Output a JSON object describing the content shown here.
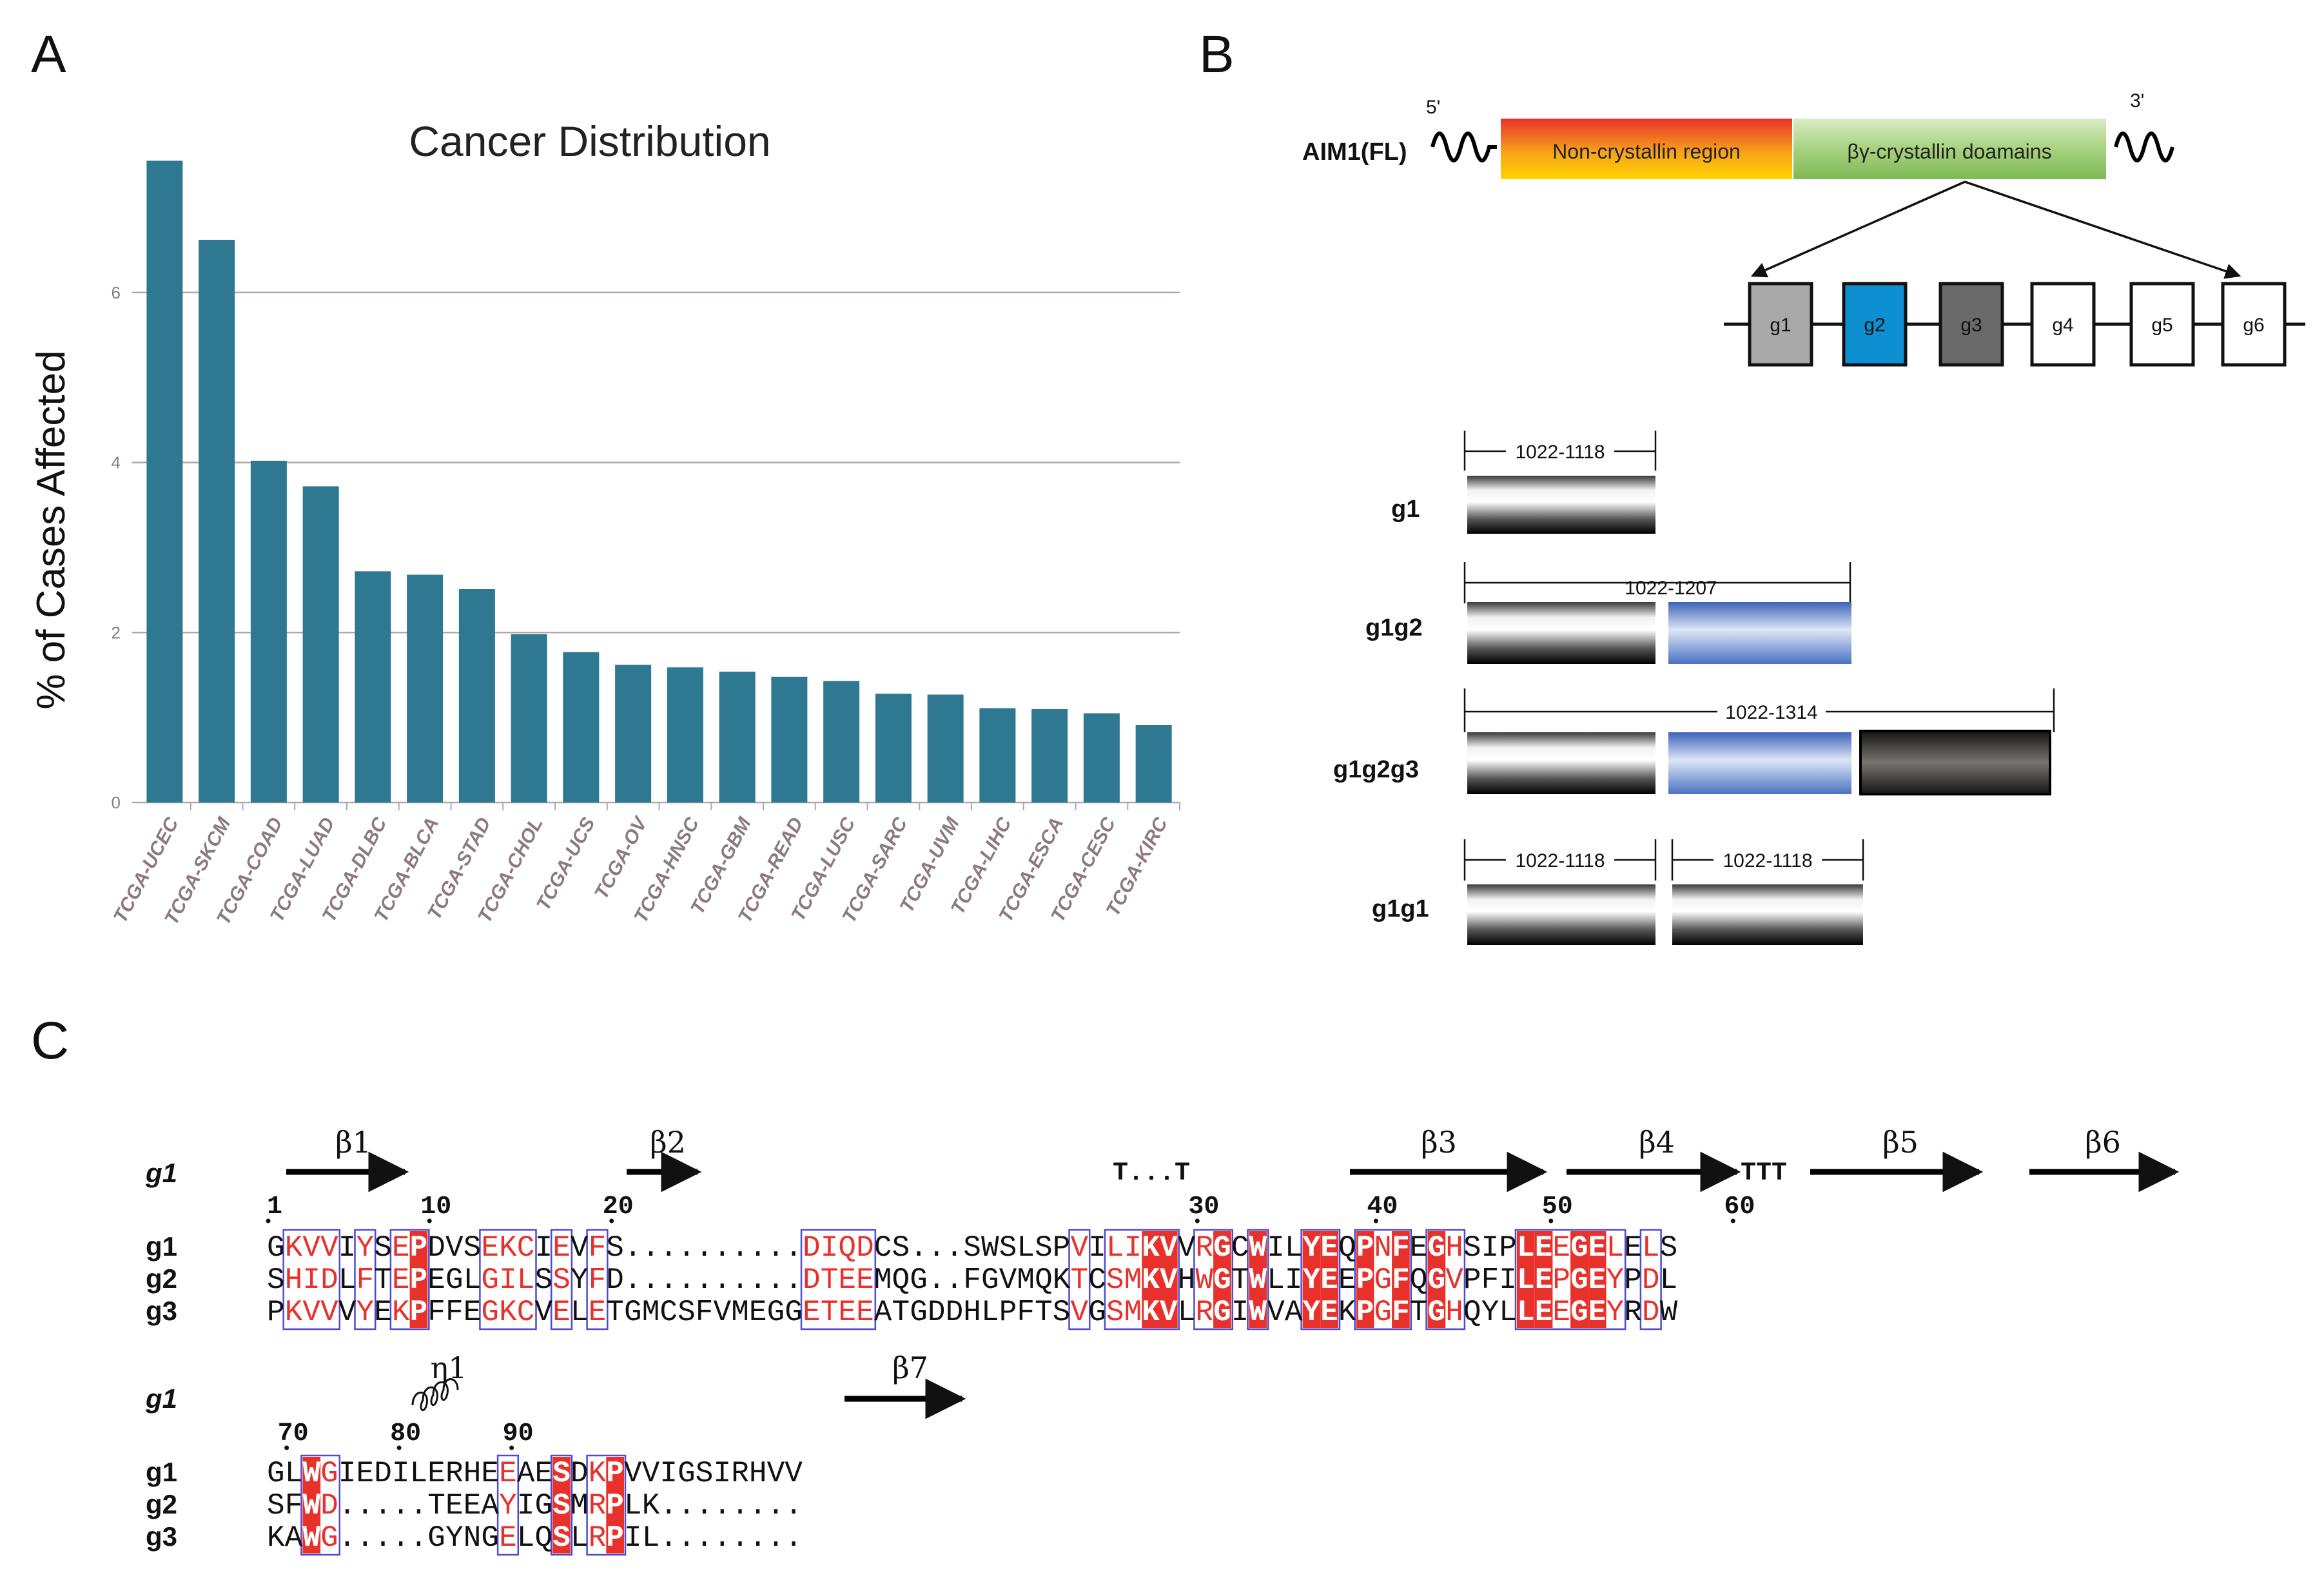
{
  "panels": {
    "a": "A",
    "b": "B",
    "c": "C"
  },
  "chart_data": {
    "type": "bar",
    "title": "Cancer Distribution",
    "xlabel": "",
    "ylabel": "% of Cases Affected",
    "ylim": [
      0,
      8
    ],
    "yticks": [
      0,
      2,
      4,
      6
    ],
    "grid": true,
    "color": "#2e7891",
    "categories": [
      "TCGA-UCEC",
      "TCGA-SKCM",
      "TCGA-COAD",
      "TCGA-LUAD",
      "TCGA-DLBC",
      "TCGA-BLCA",
      "TCGA-STAD",
      "TCGA-CHOL",
      "TCGA-UCS",
      "TCGA-OV",
      "TCGA-HNSC",
      "TCGA-GBM",
      "TCGA-READ",
      "TCGA-LUSC",
      "TCGA-SARC",
      "TCGA-UVM",
      "TCGA-LIHC",
      "TCGA-ESCA",
      "TCGA-CESC",
      "TCGA-KIRC"
    ],
    "values": [
      7.55,
      6.62,
      4.02,
      3.72,
      2.72,
      2.68,
      2.51,
      1.98,
      1.77,
      1.62,
      1.59,
      1.54,
      1.48,
      1.43,
      1.28,
      1.27,
      1.11,
      1.1,
      1.05,
      0.91
    ]
  },
  "schema": {
    "construct_label": "AIM1(FL)",
    "five_prime": "5'",
    "three_prime": "3'",
    "region1": "Non-crystallin region",
    "region2": "βγ-crystallin doamains",
    "domains": [
      {
        "label": "g1",
        "color": "#a9a9a9"
      },
      {
        "label": "g2",
        "color": "#0d8fd1"
      },
      {
        "label": "g3",
        "color": "#6a6a6a"
      },
      {
        "label": "g4",
        "color": "#ffffff"
      },
      {
        "label": "g5",
        "color": "#ffffff"
      },
      {
        "label": "g6",
        "color": "#ffffff"
      }
    ],
    "constructs": [
      {
        "name": "g1",
        "ranges": [
          "1022-1118"
        ]
      },
      {
        "name": "g1g2",
        "ranges": [
          "1022-1207"
        ]
      },
      {
        "name": "g1g2g3",
        "ranges": [
          "1022-1314"
        ]
      },
      {
        "name": "g1g1",
        "ranges": [
          "1022-1118",
          "1022-1118"
        ]
      }
    ]
  },
  "alignment": {
    "block1": {
      "ss_label": "g1",
      "strands": [
        "β1",
        "β2",
        "β3",
        "β4",
        "β5",
        "β6"
      ],
      "turns": [
        "T...T",
        "TTT"
      ],
      "ruler": [
        "1",
        "10",
        "20",
        "30",
        "40",
        "50",
        "60"
      ],
      "rows": [
        {
          "name": "g1",
          "seq": "GKVVIYSEPDVSEKCIEVFS..........DIQDCS...SWSLSPVILIKVVRGCWILYEQPNFEGHSIPLEEGELELS"
        },
        {
          "name": "g2",
          "seq": "SHIDLFTEPEGLGILSSYFD..........DTEEMQG..FGVMQKTCSMKVHWGTWLIYEEPGFQGVPFILEPGEYPDL"
        },
        {
          "name": "g3",
          "seq": "PKVVVYEKPFFEGKCVELETGMCSFVMEGGETEEATGDDHLPFTSVGSMKVLRGIWVAYEKPGFTGHQYLLEEGEYRDW"
        }
      ]
    },
    "block2": {
      "ss_label": "g1",
      "helix": "η1",
      "strand": "β7",
      "ruler": [
        "70",
        "80",
        "90"
      ],
      "rows": [
        {
          "name": "g1",
          "seq": "GLWGIEDILERHEEAESDKPVVIGSIRHVV"
        },
        {
          "name": "g2",
          "seq": "SFWD.....TEEAYIGSMRPLK........"
        },
        {
          "name": "g3",
          "seq": "KAWG.....GYNGELQSLRPIL........"
        }
      ]
    }
  }
}
